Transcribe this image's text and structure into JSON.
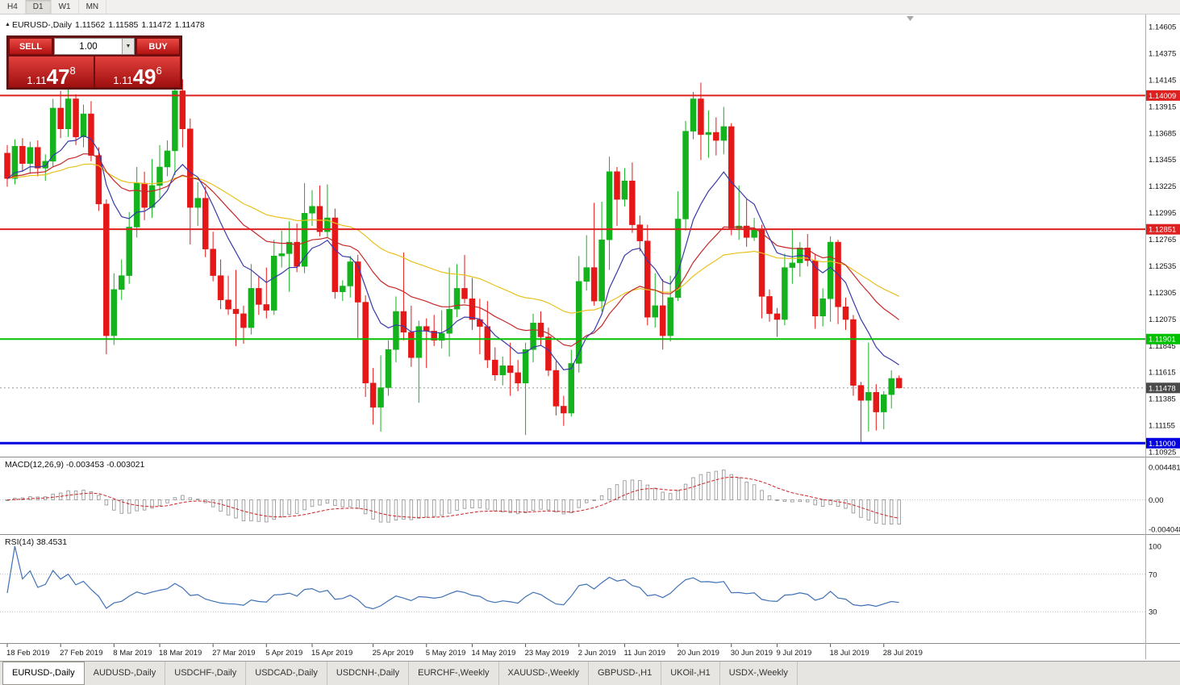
{
  "toolbar": {
    "timeframes": [
      "H4",
      "D1",
      "W1",
      "MN"
    ],
    "active": "D1"
  },
  "chart_header": {
    "direction_icon": "▲",
    "symbol": "EURUSD-,Daily",
    "open": "1.11562",
    "high": "1.11585",
    "low": "1.11472",
    "close": "1.11478"
  },
  "trade_panel": {
    "sell_label": "SELL",
    "buy_label": "BUY",
    "volume": "1.00",
    "dropdown_icon": "▼",
    "sell_price": {
      "prefix": "1.11",
      "big": "47",
      "sup": "8"
    },
    "buy_price": {
      "prefix": "1.11",
      "big": "49",
      "sup": "6"
    }
  },
  "chart_data": {
    "type": "candlestick",
    "symbol": "EURUSD-",
    "timeframe": "Daily",
    "colors": {
      "bull_color": "#14b31e",
      "bear_color": "#e51717",
      "bid_line_color": "#9a9a9a",
      "bid_tag_color": "#4a4a4a"
    },
    "price_axis": {
      "top": 1.14605,
      "bottom": 1.10925,
      "labels": [
        "1.14605",
        "1.14375",
        "1.14145",
        "1.13915",
        "1.13685",
        "1.13455",
        "1.13225",
        "1.12995",
        "1.12765",
        "1.12535",
        "1.12305",
        "1.12075",
        "1.11845",
        "1.11615",
        "1.11385",
        "1.11155",
        "1.10925"
      ]
    },
    "bid": {
      "price": 1.11478,
      "label": "1.11478"
    },
    "hlines": [
      {
        "price": 1.14009,
        "label": "1.14009",
        "color": "#dd2020",
        "width": 2
      },
      {
        "price": 1.12851,
        "label": "1.12851",
        "color": "#dd2020",
        "width": 2
      },
      {
        "price": 1.11901,
        "label": "1.11901",
        "color": "#00c000",
        "width": 2
      },
      {
        "price": 1.11,
        "label": "1.11000",
        "color": "#0000e0",
        "width": 3
      }
    ],
    "moving_averages": [
      {
        "name": "slow",
        "period": 50,
        "type": "ema",
        "color": "#e8c11c"
      },
      {
        "name": "medium",
        "period": 25,
        "type": "ema",
        "color": "#c62828"
      },
      {
        "name": "fast",
        "period": 10,
        "type": "ema",
        "color": "#3a3aa8"
      }
    ],
    "date_ticks": [
      {
        "i": 0,
        "label": "18 Feb 2019"
      },
      {
        "i": 7,
        "label": "27 Feb 2019"
      },
      {
        "i": 14,
        "label": "8 Mar 2019"
      },
      {
        "i": 20,
        "label": "18 Mar 2019"
      },
      {
        "i": 27,
        "label": "27 Mar 2019"
      },
      {
        "i": 34,
        "label": "5 Apr 2019"
      },
      {
        "i": 40,
        "label": "15 Apr 2019"
      },
      {
        "i": 48,
        "label": "25 Apr 2019"
      },
      {
        "i": 55,
        "label": "5 May 2019"
      },
      {
        "i": 61,
        "label": "14 May 2019"
      },
      {
        "i": 68,
        "label": "23 May 2019"
      },
      {
        "i": 75,
        "label": "2 Jun 2019"
      },
      {
        "i": 81,
        "label": "11 Jun 2019"
      },
      {
        "i": 88,
        "label": "20 Jun 2019"
      },
      {
        "i": 95,
        "label": "30 Jun 2019"
      },
      {
        "i": 101,
        "label": "9 Jul 2019"
      },
      {
        "i": 108,
        "label": "18 Jul 2019"
      },
      {
        "i": 115,
        "label": "28 Jul 2019"
      }
    ],
    "candles": [
      [
        1.1351,
        1.1358,
        1.1322,
        1.1329
      ],
      [
        1.1329,
        1.1363,
        1.1324,
        1.1357
      ],
      [
        1.1357,
        1.1364,
        1.1335,
        1.1342
      ],
      [
        1.1342,
        1.1361,
        1.1333,
        1.1356
      ],
      [
        1.1356,
        1.1362,
        1.1331,
        1.1338
      ],
      [
        1.1338,
        1.135,
        1.1327,
        1.1344
      ],
      [
        1.1344,
        1.1398,
        1.1339,
        1.139
      ],
      [
        1.139,
        1.1405,
        1.1364,
        1.1372
      ],
      [
        1.1372,
        1.1409,
        1.1365,
        1.1398
      ],
      [
        1.1398,
        1.1402,
        1.1358,
        1.1365
      ],
      [
        1.1365,
        1.1393,
        1.1356,
        1.1385
      ],
      [
        1.1385,
        1.1396,
        1.1344,
        1.1349
      ],
      [
        1.1349,
        1.1356,
        1.1301,
        1.1307
      ],
      [
        1.1307,
        1.1311,
        1.1177,
        1.1193
      ],
      [
        1.1193,
        1.1247,
        1.1185,
        1.1233
      ],
      [
        1.1233,
        1.1259,
        1.1224,
        1.1245
      ],
      [
        1.1245,
        1.13,
        1.1238,
        1.1287
      ],
      [
        1.1287,
        1.1339,
        1.1278,
        1.1325
      ],
      [
        1.1325,
        1.1335,
        1.1293,
        1.1304
      ],
      [
        1.1304,
        1.1346,
        1.1295,
        1.1323
      ],
      [
        1.1323,
        1.1358,
        1.1312,
        1.1339
      ],
      [
        1.1339,
        1.1362,
        1.1331,
        1.1353
      ],
      [
        1.1353,
        1.142,
        1.1332,
        1.1405
      ],
      [
        1.1405,
        1.1415,
        1.1356,
        1.1372
      ],
      [
        1.1372,
        1.1381,
        1.1272,
        1.1304
      ],
      [
        1.1304,
        1.1326,
        1.1288,
        1.1312
      ],
      [
        1.1312,
        1.1322,
        1.1261,
        1.1268
      ],
      [
        1.1268,
        1.1283,
        1.124,
        1.1245
      ],
      [
        1.1245,
        1.1259,
        1.1216,
        1.1224
      ],
      [
        1.1224,
        1.1245,
        1.1211,
        1.1216
      ],
      [
        1.1216,
        1.125,
        1.1184,
        1.1212
      ],
      [
        1.1212,
        1.1219,
        1.1186,
        1.12
      ],
      [
        1.12,
        1.1255,
        1.1194,
        1.1234
      ],
      [
        1.1234,
        1.1244,
        1.1211,
        1.122
      ],
      [
        1.122,
        1.1252,
        1.1208,
        1.1215
      ],
      [
        1.1215,
        1.1276,
        1.1211,
        1.1262
      ],
      [
        1.1262,
        1.1284,
        1.1252,
        1.1264
      ],
      [
        1.1264,
        1.1292,
        1.1231,
        1.1274
      ],
      [
        1.1274,
        1.129,
        1.1248,
        1.1253
      ],
      [
        1.1253,
        1.1325,
        1.1247,
        1.1299
      ],
      [
        1.1299,
        1.1319,
        1.1288,
        1.1305
      ],
      [
        1.1305,
        1.1323,
        1.1279,
        1.1283
      ],
      [
        1.1283,
        1.1324,
        1.1278,
        1.1295
      ],
      [
        1.1295,
        1.1303,
        1.1225,
        1.1231
      ],
      [
        1.1231,
        1.1241,
        1.1223,
        1.1236
      ],
      [
        1.1236,
        1.1262,
        1.1226,
        1.1257
      ],
      [
        1.1257,
        1.1263,
        1.1191,
        1.1222
      ],
      [
        1.1222,
        1.1228,
        1.114,
        1.1152
      ],
      [
        1.1152,
        1.1165,
        1.1116,
        1.1131
      ],
      [
        1.1131,
        1.1176,
        1.111,
        1.1148
      ],
      [
        1.1148,
        1.1189,
        1.1141,
        1.1181
      ],
      [
        1.1181,
        1.1227,
        1.117,
        1.1214
      ],
      [
        1.1214,
        1.1265,
        1.1189,
        1.1196
      ],
      [
        1.1196,
        1.1219,
        1.1166,
        1.1174
      ],
      [
        1.1174,
        1.1206,
        1.1135,
        1.1201
      ],
      [
        1.1201,
        1.1208,
        1.1165,
        1.1197
      ],
      [
        1.1197,
        1.1211,
        1.1184,
        1.1189
      ],
      [
        1.1189,
        1.1215,
        1.1182,
        1.1195
      ],
      [
        1.1195,
        1.1252,
        1.1175,
        1.1216
      ],
      [
        1.1216,
        1.1255,
        1.1209,
        1.1234
      ],
      [
        1.1234,
        1.1263,
        1.1221,
        1.1225
      ],
      [
        1.1225,
        1.1243,
        1.1198,
        1.1207
      ],
      [
        1.1207,
        1.1225,
        1.1177,
        1.1201
      ],
      [
        1.1201,
        1.1223,
        1.1165,
        1.1172
      ],
      [
        1.1172,
        1.1183,
        1.1154,
        1.1159
      ],
      [
        1.1159,
        1.1175,
        1.115,
        1.1167
      ],
      [
        1.1167,
        1.1187,
        1.1141,
        1.1161
      ],
      [
        1.1161,
        1.1172,
        1.1145,
        1.1152
      ],
      [
        1.1152,
        1.1187,
        1.1107,
        1.1181
      ],
      [
        1.1181,
        1.1212,
        1.117,
        1.1204
      ],
      [
        1.1204,
        1.1214,
        1.1185,
        1.1192
      ],
      [
        1.1192,
        1.12,
        1.1158,
        1.1163
      ],
      [
        1.1163,
        1.1171,
        1.1124,
        1.1132
      ],
      [
        1.1132,
        1.1141,
        1.1115,
        1.1126
      ],
      [
        1.1126,
        1.1181,
        1.1123,
        1.1169
      ],
      [
        1.1169,
        1.1262,
        1.1161,
        1.124
      ],
      [
        1.124,
        1.128,
        1.1232,
        1.1252
      ],
      [
        1.1252,
        1.1308,
        1.1219,
        1.1223
      ],
      [
        1.1223,
        1.1309,
        1.1214,
        1.1276
      ],
      [
        1.1276,
        1.1348,
        1.125,
        1.1335
      ],
      [
        1.1335,
        1.1339,
        1.1288,
        1.1311
      ],
      [
        1.1311,
        1.1338,
        1.1305,
        1.1327
      ],
      [
        1.1327,
        1.1343,
        1.1282,
        1.1289
      ],
      [
        1.1289,
        1.1297,
        1.1266,
        1.1275
      ],
      [
        1.1275,
        1.1289,
        1.1202,
        1.1209
      ],
      [
        1.1209,
        1.1247,
        1.12,
        1.1219
      ],
      [
        1.1219,
        1.1242,
        1.1181,
        1.1193
      ],
      [
        1.1193,
        1.1245,
        1.1188,
        1.1226
      ],
      [
        1.1226,
        1.1318,
        1.1223,
        1.1294
      ],
      [
        1.1294,
        1.1379,
        1.1284,
        1.137
      ],
      [
        1.137,
        1.1404,
        1.1363,
        1.1398
      ],
      [
        1.1398,
        1.1412,
        1.1345,
        1.1367
      ],
      [
        1.1367,
        1.1388,
        1.1347,
        1.1369
      ],
      [
        1.1369,
        1.1382,
        1.1349,
        1.1362
      ],
      [
        1.1362,
        1.1391,
        1.135,
        1.1374
      ],
      [
        1.1374,
        1.1377,
        1.128,
        1.1286
      ],
      [
        1.1286,
        1.1323,
        1.1276,
        1.1288
      ],
      [
        1.1288,
        1.1311,
        1.127,
        1.1278
      ],
      [
        1.1278,
        1.1295,
        1.1275,
        1.1285
      ],
      [
        1.1285,
        1.1289,
        1.1208,
        1.1227
      ],
      [
        1.1227,
        1.1233,
        1.1205,
        1.1212
      ],
      [
        1.1212,
        1.1217,
        1.1192,
        1.1207
      ],
      [
        1.1207,
        1.1264,
        1.1202,
        1.1252
      ],
      [
        1.1252,
        1.1285,
        1.1238,
        1.1256
      ],
      [
        1.1256,
        1.1274,
        1.1244,
        1.1269
      ],
      [
        1.1269,
        1.1281,
        1.1253,
        1.1258
      ],
      [
        1.1258,
        1.1264,
        1.1199,
        1.121
      ],
      [
        1.121,
        1.1234,
        1.1201,
        1.1225
      ],
      [
        1.1225,
        1.1279,
        1.1205,
        1.1274
      ],
      [
        1.1274,
        1.1276,
        1.1203,
        1.1218
      ],
      [
        1.1218,
        1.1226,
        1.1198,
        1.1207
      ],
      [
        1.1207,
        1.1211,
        1.1141,
        1.115
      ],
      [
        1.115,
        1.1153,
        1.1101,
        1.1137
      ],
      [
        1.1137,
        1.1187,
        1.111,
        1.1144
      ],
      [
        1.1144,
        1.1151,
        1.1111,
        1.1127
      ],
      [
        1.1127,
        1.1145,
        1.1112,
        1.1142
      ],
      [
        1.1142,
        1.1163,
        1.113,
        1.1156
      ],
      [
        1.11562,
        1.11585,
        1.11472,
        1.11478
      ]
    ],
    "macd": {
      "label": "MACD(12,26,9) -0.003453 -0.003021",
      "params": [
        12,
        26,
        9
      ],
      "axis_labels": [
        "0.004481",
        "0.00",
        "-0.004048"
      ],
      "axis_values": [
        0.004481,
        0.0,
        -0.004048
      ],
      "histogram_color": "#9a9a9a",
      "signal_color": "#cc2222"
    },
    "rsi": {
      "label": "RSI(14) 38.4531",
      "period": 14,
      "value": 38.4531,
      "axis_labels": [
        "100",
        "70",
        "30"
      ],
      "axis_values": [
        100,
        70,
        30
      ],
      "levels": [
        70,
        30
      ],
      "line_color": "#3f71b5"
    }
  },
  "tabs": {
    "active_index": 0,
    "items": [
      "EURUSD-,Daily",
      "AUDUSD-,Daily",
      "USDCHF-,Daily",
      "USDCAD-,Daily",
      "USDCNH-,Daily",
      "EURCHF-,Weekly",
      "XAUUSD-,Weekly",
      "GBPUSD-,H1",
      "UKOil-,H1",
      "USDX-,Weekly"
    ]
  }
}
